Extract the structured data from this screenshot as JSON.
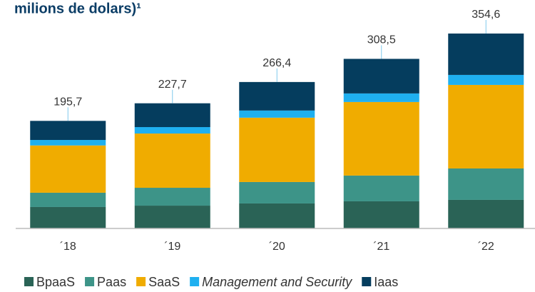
{
  "chart_data": {
    "type": "stacked_bar",
    "title": "milions de dolars)¹",
    "categories": [
      "´18",
      "´19",
      "´20",
      "´21",
      "´22"
    ],
    "series": [
      {
        "name": "BpaaS",
        "color": "#2a6356",
        "values": [
          39,
          41.5,
          45.5,
          49.4,
          52
        ]
      },
      {
        "name": "Paas",
        "color": "#3d9488",
        "values": [
          26,
          32.5,
          39,
          46.8,
          57.1
        ]
      },
      {
        "name": "SaaS",
        "color": "#f0ac00",
        "values": [
          86,
          98.7,
          117,
          133.8,
          152
        ]
      },
      {
        "name": "Management and Security",
        "color": "#1fb0f0",
        "values": [
          10,
          11.7,
          13,
          15.6,
          18.2
        ]
      },
      {
        "name": "Iaas",
        "color": "#053d5e",
        "values": [
          34.7,
          43.3,
          51.9,
          62.9,
          75.3
        ]
      }
    ],
    "totals": [
      195.7,
      227.7,
      266.4,
      308.5,
      354.6
    ],
    "total_labels": [
      "195,7",
      "227,7",
      "266,4",
      "308,5",
      "354,6"
    ],
    "ylim": [
      0,
      400
    ]
  }
}
